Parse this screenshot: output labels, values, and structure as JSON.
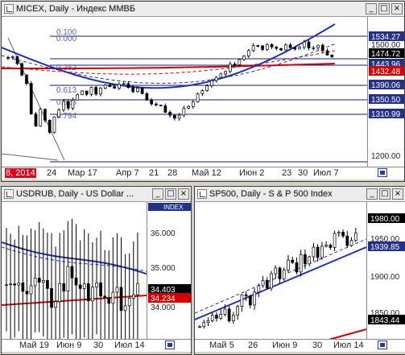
{
  "windows": {
    "micex": {
      "title": "MICEX, Daily - Индекс ММВБ",
      "buttons": {
        "min": "_",
        "max": "□",
        "close": "×"
      },
      "fib_labels": [
        "0.000",
        "0.382",
        "0.613",
        "0.526",
        "0.794"
      ],
      "fib_label_top": "0.100",
      "price_levels": [
        {
          "label": "1534.27",
          "boxed": true
        },
        {
          "label": "1500.00",
          "boxed": false
        },
        {
          "label": "1474.72",
          "boxed": true
        },
        {
          "label": "1443.96",
          "boxed": true
        },
        {
          "label": "1432.48",
          "boxed": true
        },
        {
          "label": "1390.06",
          "boxed": true
        },
        {
          "label": "1350.50",
          "boxed": true
        },
        {
          "label": "1310.99",
          "boxed": true
        },
        {
          "label": "1200.00",
          "boxed": false
        }
      ],
      "date_labels": [
        "8, 2014",
        "24",
        "Мар 17",
        "Апр 7",
        "21",
        "28",
        "Май 12",
        "Июн 2",
        "23",
        "30",
        "Июл 7"
      ]
    },
    "usdrub": {
      "title": "USDRUB, Daily - US Dollar ...",
      "buttons": {
        "min": "_",
        "max": "□",
        "close": "×"
      },
      "scale_header": "INDEX",
      "price_levels": [
        {
          "label": "36.000",
          "boxed": false
        },
        {
          "label": "35.000",
          "boxed": false
        },
        {
          "label": "34.403",
          "boxed": true
        },
        {
          "label": "34.234",
          "boxed": true
        },
        {
          "label": "34.000",
          "boxed": false
        }
      ],
      "date_labels": [
        "Май 19",
        "Июн 9",
        "30",
        "Июл 14"
      ]
    },
    "sp500": {
      "title": "SP500, Daily - S & P 500 Index",
      "buttons": {
        "min": "_",
        "max": "□",
        "close": "×"
      },
      "price_levels": [
        {
          "label": "1980.00",
          "boxed": true
        },
        {
          "label": "1950.00",
          "boxed": false
        },
        {
          "label": "1939.85",
          "boxed": true
        },
        {
          "label": "1900.00",
          "boxed": false
        },
        {
          "label": "1850.00",
          "boxed": false
        },
        {
          "label": "1843.44",
          "boxed": true
        }
      ],
      "date_labels": [
        "Май 5",
        "26",
        "Июн 9",
        "30",
        "Июл 14"
      ]
    }
  },
  "colors": {
    "blue_ma": "#1f2fb8",
    "red_ma": "#d40000",
    "candle_up": "#ffffff",
    "candle_down": "#000000",
    "scale_box_dark": "#000000",
    "scale_box_blue": "#24318a",
    "scale_box_red": "#d40000",
    "fib_line": "#9aa0d8"
  }
}
